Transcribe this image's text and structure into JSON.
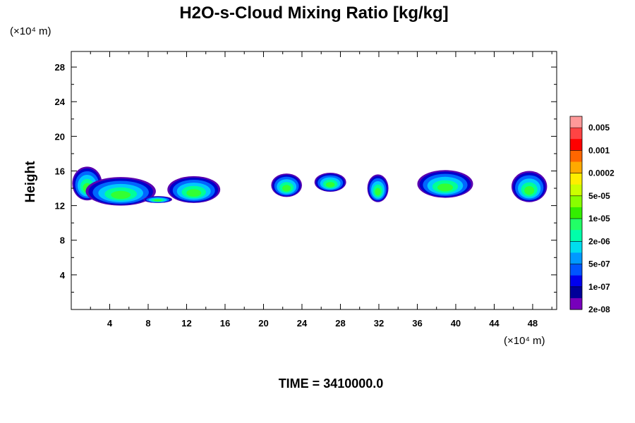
{
  "chart_data": {
    "type": "contour",
    "title": "H2O-s-Cloud Mixing Ratio [kg/kg]",
    "xlabel": "",
    "ylabel": "Height",
    "x_unit_label": "(×10⁴ m)",
    "y_unit_label": "(×10⁴ m)",
    "xlim": [
      0,
      50.5
    ],
    "ylim": [
      0,
      29.8
    ],
    "x_ticks": [
      4,
      8,
      12,
      16,
      20,
      24,
      28,
      32,
      36,
      40,
      44,
      48
    ],
    "y_ticks": [
      4,
      8,
      12,
      16,
      20,
      24,
      28
    ],
    "time_label": "TIME = 3410000.0",
    "colorbar": {
      "labels": [
        "0.005",
        "0.001",
        "0.0002",
        "5e-05",
        "1e-05",
        "2e-06",
        "5e-07",
        "1e-07",
        "2e-08"
      ],
      "colors": [
        "#ff9999",
        "#ff4444",
        "#ff0000",
        "#ff6600",
        "#ffaa00",
        "#ffee00",
        "#ccff00",
        "#88ff00",
        "#33ee00",
        "#22ff66",
        "#00ffaa",
        "#00ddee",
        "#0099ff",
        "#0055ff",
        "#0000ee",
        "#000099",
        "#7700bb"
      ]
    },
    "clouds": [
      {
        "x_range": [
          0.1,
          3.2
        ],
        "top": 16.5,
        "bottom": 12.6
      },
      {
        "x_range": [
          1.5,
          8.8
        ],
        "top": 15.3,
        "bottom": 12.0
      },
      {
        "x_range": [
          7.5,
          10.5
        ],
        "top": 13.1,
        "bottom": 12.3
      },
      {
        "x_range": [
          10.0,
          15.5
        ],
        "top": 15.4,
        "bottom": 12.3
      },
      {
        "x_range": [
          20.8,
          24.0
        ],
        "top": 15.7,
        "bottom": 13.0
      },
      {
        "x_range": [
          25.3,
          28.6
        ],
        "top": 15.8,
        "bottom": 13.6
      },
      {
        "x_range": [
          30.8,
          33.0
        ],
        "top": 15.6,
        "bottom": 12.4
      },
      {
        "x_range": [
          36.0,
          41.8
        ],
        "top": 16.1,
        "bottom": 12.9
      },
      {
        "x_range": [
          45.8,
          49.5
        ],
        "top": 16.0,
        "bottom": 12.4
      }
    ]
  }
}
